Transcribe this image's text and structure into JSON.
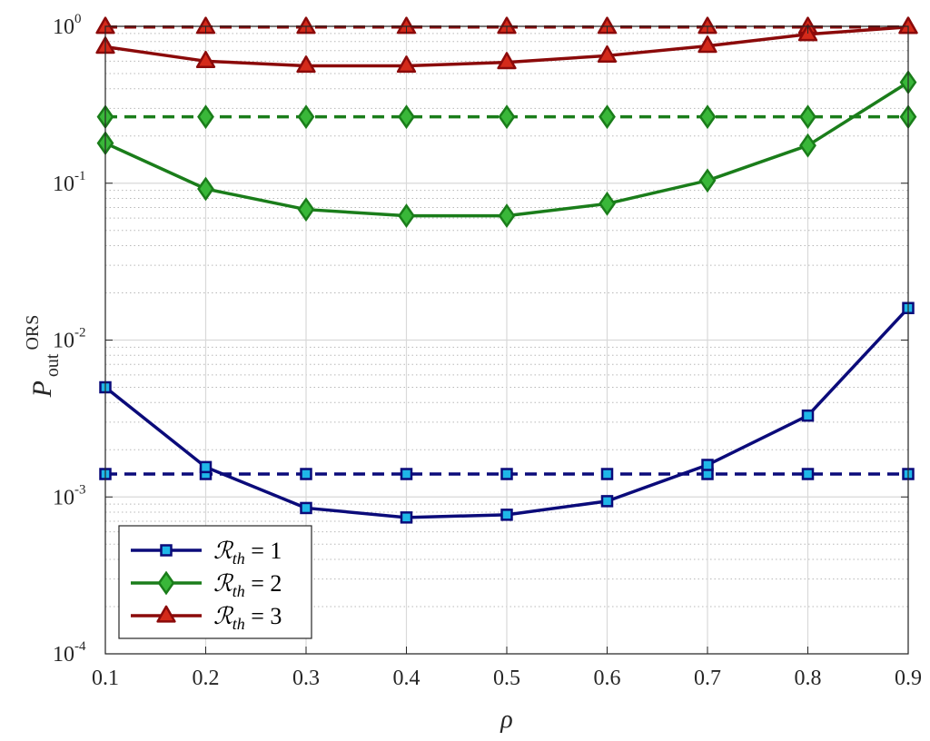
{
  "chart_data": {
    "type": "line",
    "title": "",
    "xlabel": "ρ",
    "ylabel": {
      "base": "P",
      "sub": "out",
      "sup": "ORS"
    },
    "x": [
      0.1,
      0.2,
      0.3,
      0.4,
      0.5,
      0.6,
      0.7,
      0.8,
      0.9
    ],
    "xlim": [
      0.1,
      0.9
    ],
    "ylim": [
      0.0001,
      1
    ],
    "yscale": "log",
    "grid": true,
    "xticks": [
      "0.1",
      "0.2",
      "0.3",
      "0.4",
      "0.5",
      "0.6",
      "0.7",
      "0.8",
      "0.9"
    ],
    "yticks": [
      {
        "base": "10",
        "exp": "-4",
        "value": 0.0001
      },
      {
        "base": "10",
        "exp": "-3",
        "value": 0.001
      },
      {
        "base": "10",
        "exp": "-2",
        "value": 0.01
      },
      {
        "base": "10",
        "exp": "-1",
        "value": 0.1
      },
      {
        "base": "10",
        "exp": "0",
        "value": 1
      }
    ],
    "legend_position": "bottom-left",
    "series": [
      {
        "name": "R_th = 1",
        "legend_label": {
          "symbol": "ℛ",
          "sub": "th",
          "rest": " = 1"
        },
        "color": "#0b0b7a",
        "marker_fill": "#1fb7e8",
        "marker": "square",
        "values": [
          0.005,
          0.00155,
          0.00085,
          0.00074,
          0.00077,
          0.00094,
          0.0016,
          0.0033,
          0.016
        ],
        "reference_values": [
          0.0014,
          0.0014,
          0.0014,
          0.0014,
          0.0014,
          0.0014,
          0.0014,
          0.0014,
          0.0014
        ]
      },
      {
        "name": "R_th = 2",
        "legend_label": {
          "symbol": "ℛ",
          "sub": "th",
          "rest": " = 2"
        },
        "color": "#1a7d1a",
        "marker_fill": "#39b739",
        "marker": "diamond",
        "values": [
          0.18,
          0.092,
          0.068,
          0.062,
          0.062,
          0.074,
          0.104,
          0.174,
          0.44
        ],
        "reference_values": [
          0.265,
          0.265,
          0.265,
          0.265,
          0.265,
          0.265,
          0.265,
          0.265,
          0.265
        ]
      },
      {
        "name": "R_th = 3",
        "legend_label": {
          "symbol": "ℛ",
          "sub": "th",
          "rest": " = 3"
        },
        "color": "#8b0a0a",
        "marker_fill": "#d42a1a",
        "marker": "triangle",
        "values": [
          0.74,
          0.6,
          0.56,
          0.56,
          0.59,
          0.65,
          0.75,
          0.89,
          0.99
        ],
        "reference_values": [
          0.99,
          0.99,
          0.99,
          0.99,
          0.99,
          0.99,
          0.99,
          0.99,
          0.99
        ]
      }
    ]
  }
}
